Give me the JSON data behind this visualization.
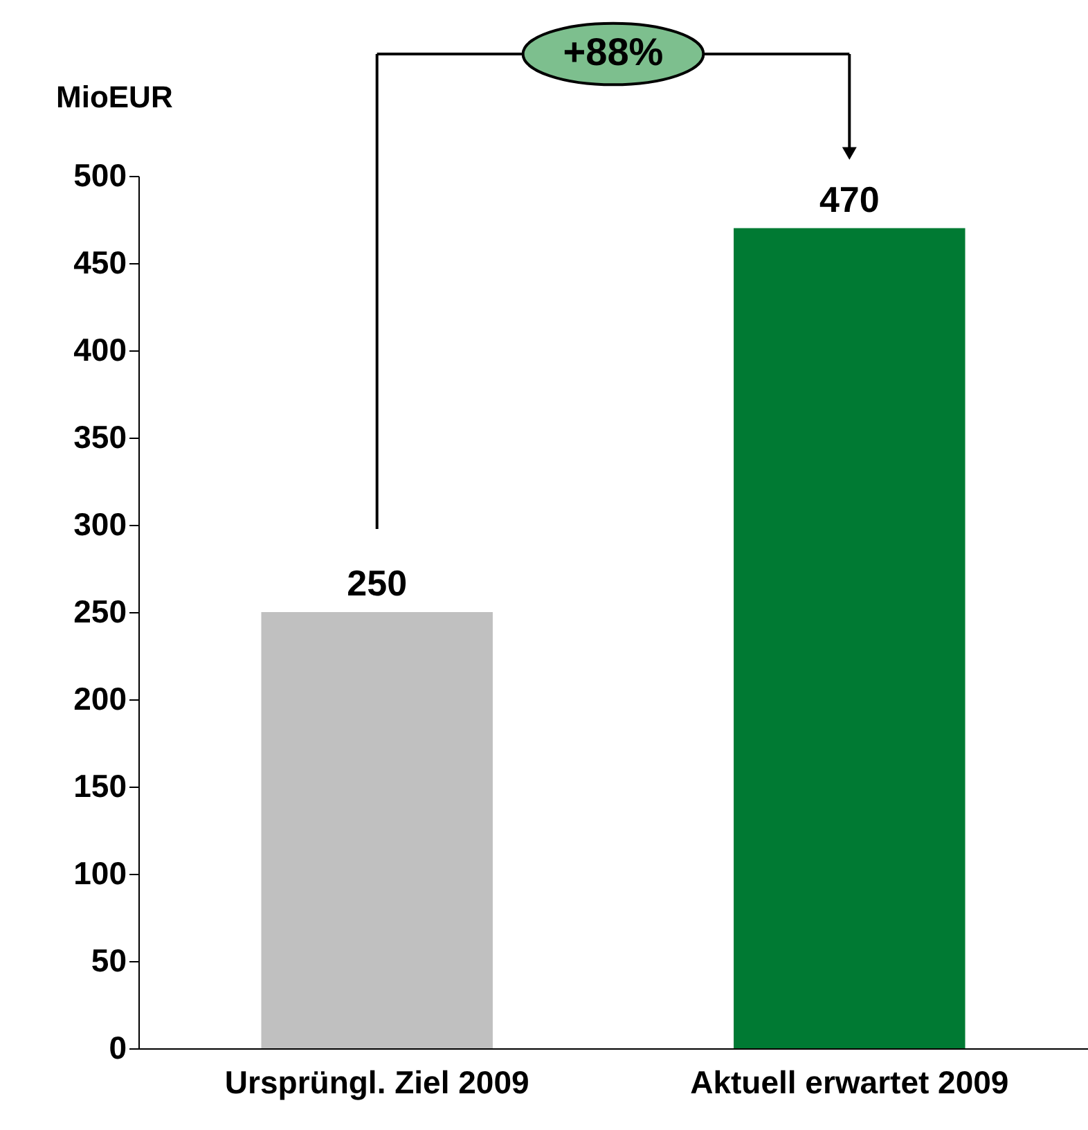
{
  "chart_data": {
    "type": "bar",
    "ylabel": "MioEUR",
    "categories": [
      "Ursprüngl. Ziel 2009",
      "Aktuell erwartet 2009"
    ],
    "values": [
      250,
      470
    ],
    "colors": [
      "#c0c0c0",
      "#007a33"
    ],
    "ylim": [
      0,
      500
    ],
    "yticks": [
      0,
      50,
      100,
      150,
      200,
      250,
      300,
      350,
      400,
      450,
      500
    ],
    "data_labels": true,
    "grid": false,
    "annotations": [
      "+88%"
    ]
  }
}
